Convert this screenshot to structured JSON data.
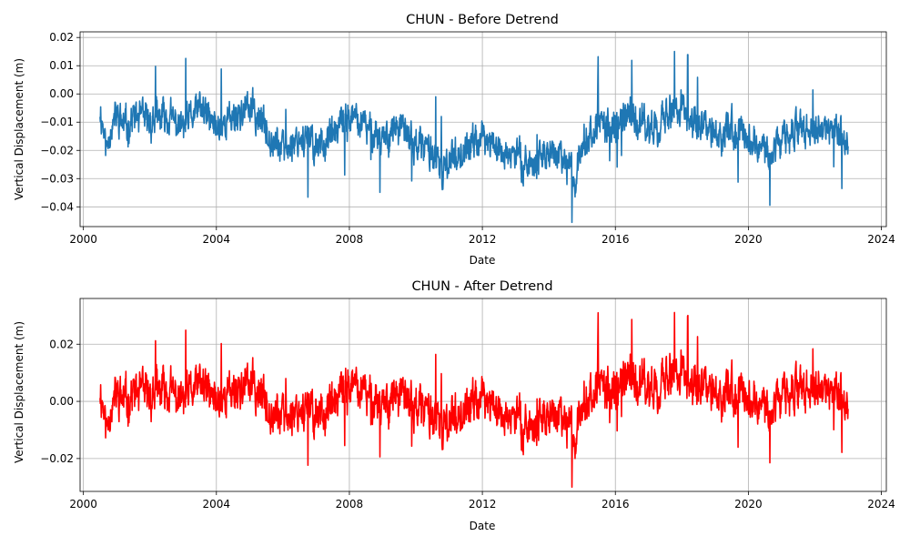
{
  "chart_data": [
    {
      "type": "line",
      "title": "CHUN - Before Detrend",
      "xlabel": "Date",
      "ylabel": "Vertical Displacement (m)",
      "xlim": [
        1999.9,
        2024.15
      ],
      "ylim": [
        -0.047,
        0.022
      ],
      "xticks": [
        2000,
        2004,
        2008,
        2012,
        2016,
        2020,
        2024
      ],
      "yticks": [
        -0.04,
        -0.03,
        -0.02,
        -0.01,
        0.0,
        0.01,
        0.02
      ],
      "ytick_labels": [
        "−0.04",
        "−0.03",
        "−0.02",
        "−0.01",
        "0.00",
        "0.01",
        "0.02"
      ],
      "grid": true,
      "color": "#1f77b4",
      "series": [
        {
          "name": "CHUN",
          "x": [
            2000.5,
            2000.6,
            2000.7,
            2000.8,
            2001.0,
            2001.3,
            2001.5,
            2002.0,
            2002.5,
            2003.0,
            2003.5,
            2004.0,
            2004.5,
            2005.0,
            2005.5,
            2006.0,
            2006.5,
            2007.0,
            2007.5,
            2008.0,
            2008.5,
            2009.0,
            2009.5,
            2010.0,
            2010.5,
            2010.8,
            2011.0,
            2011.5,
            2012.0,
            2012.5,
            2013.0,
            2013.5,
            2014.0,
            2014.5,
            2014.8,
            2015.0,
            2015.5,
            2016.0,
            2016.5,
            2017.0,
            2017.5,
            2018.0,
            2018.5,
            2019.0,
            2019.5,
            2020.0,
            2020.5,
            2021.0,
            2021.5,
            2022.0,
            2022.5,
            2023.0
          ],
          "values": [
            -0.005,
            -0.012,
            -0.02,
            -0.012,
            -0.008,
            -0.012,
            -0.008,
            -0.01,
            -0.008,
            -0.012,
            -0.005,
            -0.012,
            -0.008,
            -0.005,
            -0.012,
            -0.02,
            -0.015,
            -0.018,
            -0.015,
            -0.008,
            -0.012,
            -0.015,
            -0.012,
            -0.018,
            -0.02,
            -0.03,
            -0.022,
            -0.02,
            -0.015,
            -0.02,
            -0.022,
            -0.025,
            -0.02,
            -0.025,
            -0.03,
            -0.015,
            -0.012,
            -0.01,
            -0.008,
            -0.012,
            -0.008,
            -0.005,
            -0.012,
            -0.015,
            -0.012,
            -0.015,
            -0.02,
            -0.018,
            -0.01,
            -0.015,
            -0.012,
            -0.018
          ],
          "noise": 0.0045,
          "spike_count": 28,
          "seed": 11
        }
      ]
    },
    {
      "type": "line",
      "title": "CHUN - After Detrend",
      "xlabel": "Date",
      "ylabel": "Vertical Displacement (m)",
      "xlim": [
        1999.9,
        2024.15
      ],
      "ylim": [
        -0.0315,
        0.036
      ],
      "xticks": [
        2000,
        2004,
        2008,
        2012,
        2016,
        2020,
        2024
      ],
      "yticks": [
        -0.02,
        0.0,
        0.02
      ],
      "ytick_labels": [
        "−0.02",
        "0.00",
        "0.02"
      ],
      "grid": true,
      "color": "#ff0000",
      "series": [
        {
          "name": "CHUN",
          "x": [
            2000.5,
            2000.6,
            2000.7,
            2000.8,
            2001.0,
            2001.3,
            2001.5,
            2002.0,
            2002.5,
            2003.0,
            2003.5,
            2004.0,
            2004.5,
            2005.0,
            2005.5,
            2006.0,
            2006.5,
            2007.0,
            2007.5,
            2008.0,
            2008.5,
            2009.0,
            2009.5,
            2010.0,
            2010.5,
            2010.8,
            2011.0,
            2011.5,
            2012.0,
            2012.5,
            2013.0,
            2013.5,
            2014.0,
            2014.5,
            2014.8,
            2015.0,
            2015.5,
            2016.0,
            2016.5,
            2017.0,
            2017.5,
            2018.0,
            2018.5,
            2019.0,
            2019.5,
            2020.0,
            2020.5,
            2021.0,
            2021.5,
            2022.0,
            2022.5,
            2023.0
          ],
          "values": [
            0.005,
            -0.002,
            -0.01,
            -0.002,
            0.002,
            0.0,
            0.003,
            0.002,
            0.004,
            0.0,
            0.006,
            0.0,
            0.004,
            0.006,
            0.0,
            -0.006,
            -0.002,
            -0.004,
            -0.002,
            0.006,
            0.002,
            0.0,
            0.002,
            -0.002,
            -0.004,
            -0.012,
            -0.005,
            -0.003,
            0.002,
            -0.004,
            -0.006,
            -0.009,
            -0.004,
            -0.008,
            -0.012,
            0.002,
            0.004,
            0.006,
            0.008,
            0.005,
            0.008,
            0.01,
            0.004,
            0.002,
            0.004,
            0.002,
            -0.002,
            0.0,
            0.007,
            0.002,
            0.004,
            -0.002
          ],
          "noise": 0.0055,
          "spike_count": 28,
          "seed": 11
        }
      ]
    }
  ]
}
